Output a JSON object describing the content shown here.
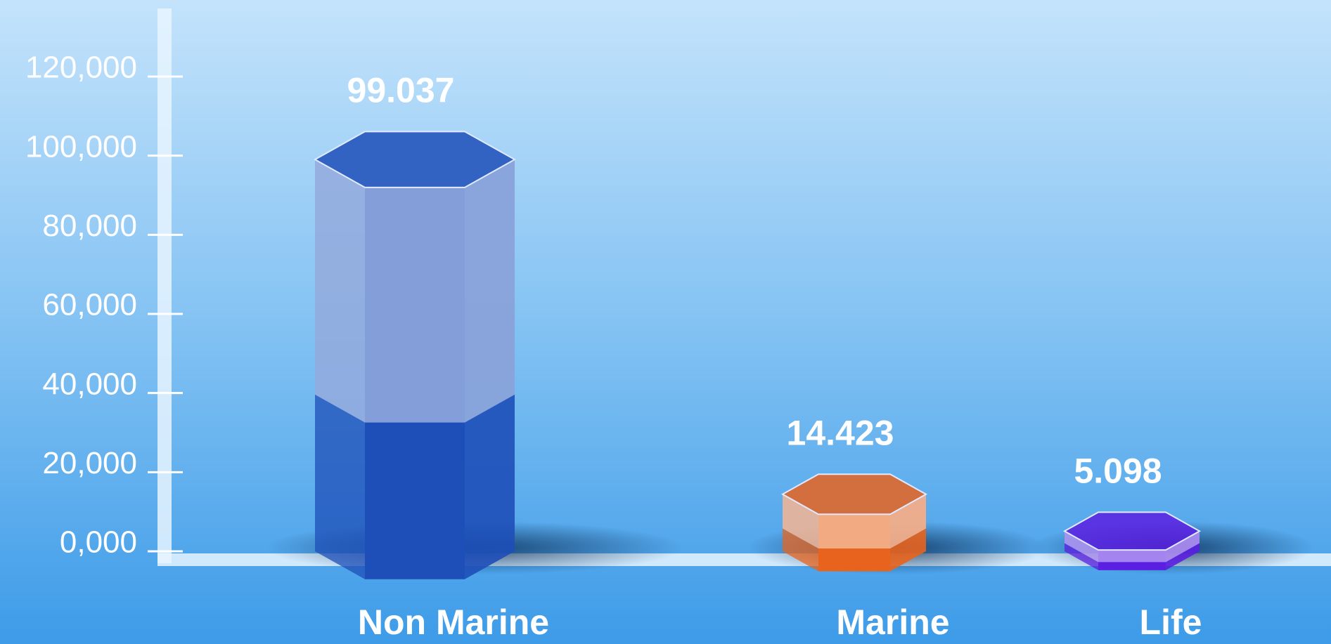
{
  "chart_data": {
    "type": "bar3d-hex",
    "categories": [
      "Non Marine",
      "Marine",
      "Life"
    ],
    "values": [
      99037,
      14423,
      5098
    ],
    "value_labels": [
      "99.037",
      "14.423",
      "5.098"
    ],
    "colors": [
      "#1e4fb8",
      "#e8641e",
      "#5a1fe0"
    ],
    "ylim": [
      0,
      120000
    ],
    "yticks": [
      {
        "value": 0,
        "label": "0,000"
      },
      {
        "value": 20000,
        "label": "20,000"
      },
      {
        "value": 40000,
        "label": "40,000"
      },
      {
        "value": 60000,
        "label": "60,000"
      },
      {
        "value": 80000,
        "label": "80,000"
      },
      {
        "value": 100000,
        "label": "100,000"
      },
      {
        "value": 120000,
        "label": "120,000"
      }
    ]
  }
}
